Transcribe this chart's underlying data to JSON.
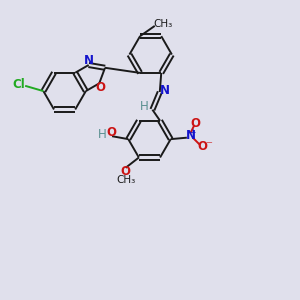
{
  "background_color": "#e0e0ec",
  "bond_color": "#1a1a1a",
  "N_color": "#1414cc",
  "O_color": "#cc1414",
  "Cl_color": "#22aa22",
  "H_color": "#5a9090",
  "line_width": 1.4,
  "font_size": 8.5,
  "xlim": [
    0,
    10
  ],
  "ylim": [
    0,
    10
  ]
}
